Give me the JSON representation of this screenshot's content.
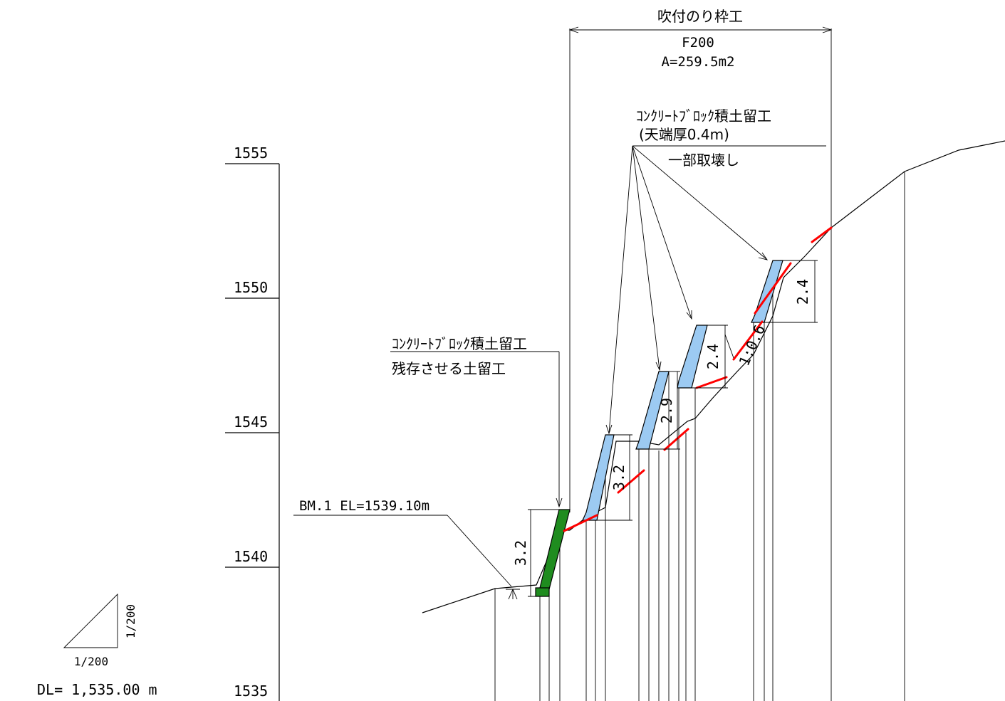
{
  "top_title": "吹付のり枠工",
  "spec": {
    "type": "F200",
    "area": "A=259.5m2"
  },
  "remove_note": {
    "line1": "ｺﾝｸﾘｰﾄﾌﾞﾛｯｸ積土留工",
    "line2": "(天端厚0.4m)",
    "line3": "一部取壊し"
  },
  "keep_note": {
    "line1": "ｺﾝｸﾘｰﾄﾌﾞﾛｯｸ積土留工",
    "line2": "残存させる土留工"
  },
  "benchmark": "BM.1 EL=1539.10m",
  "elevations": [
    "1555",
    "1550",
    "1545",
    "1540",
    "1535"
  ],
  "dimensions": {
    "wall1_height": "3.2",
    "wall2_height": "3.2",
    "wall3_height": "2.9",
    "wall4_height": "2.4",
    "wall5_height": "2.4",
    "slope": "1:0.6"
  },
  "scale": {
    "horizontal": "1/200",
    "vertical": "1/200"
  },
  "datum": "DL= 1,535.00 m",
  "colors": {
    "remaining_wall": "#1f8c1f",
    "removed_wall": "#9ccaf2",
    "cut_line": "#ff0000"
  }
}
